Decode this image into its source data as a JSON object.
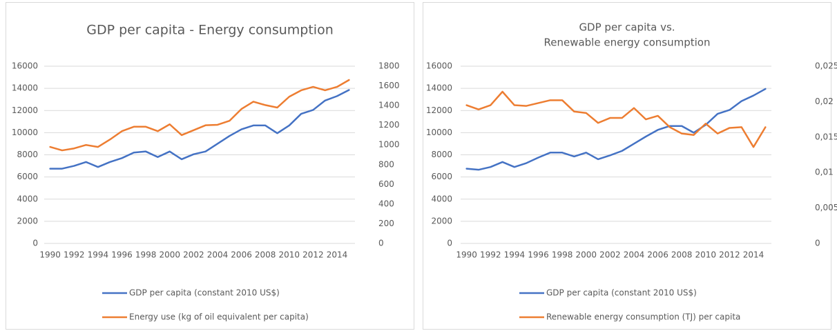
{
  "chart_data": [
    {
      "type": "line",
      "title": "GDP per capita - Energy consumption",
      "categories": [
        1990,
        null,
        1992,
        null,
        1994,
        null,
        1996,
        null,
        1998,
        null,
        2000,
        null,
        2002,
        null,
        2004,
        null,
        2006,
        null,
        2008,
        null,
        2010,
        null,
        2012,
        null,
        2014,
        null
      ],
      "series": [
        {
          "name": "GDP per capita (constant 2010 US$)",
          "color": "#4472c4",
          "values": [
            6750,
            6750,
            7000,
            7350,
            6900,
            7350,
            7700,
            8200,
            8300,
            7800,
            8300,
            7600,
            8050,
            8300,
            9000,
            9700,
            10300,
            10650,
            10650,
            9950,
            10650,
            11700,
            12050,
            12900,
            13300,
            13850
          ]
        },
        {
          "name": "Energy use (kg of oil equivalent per capita)",
          "color": "#ed7d31",
          "axis": "y2",
          "values": [
            980,
            945,
            965,
            1000,
            980,
            1055,
            1140,
            1185,
            1185,
            1140,
            1210,
            1100,
            1150,
            1200,
            1205,
            1245,
            1365,
            1440,
            1405,
            1380,
            1490,
            1555,
            1590,
            1555,
            1590,
            1660
          ]
        }
      ],
      "ylim": [
        0,
        16000
      ],
      "yticks": [
        0,
        2000,
        4000,
        6000,
        8000,
        10000,
        12000,
        14000,
        16000
      ],
      "y2lim": [
        0,
        1800
      ],
      "y2ticks": [
        0,
        200,
        400,
        600,
        800,
        1000,
        1200,
        1400,
        1600,
        1800
      ],
      "grid": true,
      "legend": "bottom"
    },
    {
      "type": "line",
      "title": [
        "GDP per capita vs.",
        "Renewable energy consumption"
      ],
      "categories": [
        1990,
        null,
        1992,
        null,
        1994,
        null,
        1996,
        null,
        1998,
        null,
        2000,
        null,
        2002,
        null,
        2004,
        null,
        2006,
        null,
        2008,
        null,
        2010,
        null,
        2012,
        null,
        2014,
        null
      ],
      "series": [
        {
          "name": "GDP per capita (constant 2010 US$)",
          "color": "#4472c4",
          "values": [
            6750,
            6650,
            6900,
            7350,
            6900,
            7250,
            7750,
            8200,
            8200,
            7850,
            8200,
            7600,
            7950,
            8350,
            9000,
            9650,
            10250,
            10600,
            10600,
            10000,
            10700,
            11700,
            12050,
            12850,
            13350,
            13950
          ]
        },
        {
          "name": "Renewable energy consumption (TJ) per capita",
          "color": "#ed7d31",
          "axis": "y2",
          "values": [
            0.0195,
            0.0189,
            0.0195,
            0.0214,
            0.0195,
            0.0194,
            0.0198,
            0.0202,
            0.0202,
            0.0186,
            0.0184,
            0.017,
            0.0177,
            0.0177,
            0.0191,
            0.0175,
            0.018,
            0.0164,
            0.0155,
            0.0153,
            0.0169,
            0.0155,
            0.0163,
            0.0164,
            0.0136,
            0.0164
          ]
        }
      ],
      "ylim": [
        0,
        16000
      ],
      "yticks": [
        0,
        2000,
        4000,
        6000,
        8000,
        10000,
        12000,
        14000,
        16000
      ],
      "y2lim": [
        0,
        0.025
      ],
      "y2ticks": [
        0,
        {
          "value": 0.005,
          "label": "0,005"
        },
        {
          "value": 0.01,
          "label": "0,01"
        },
        {
          "value": 0.015,
          "label": "0,015"
        },
        {
          "value": 0.02,
          "label": "0,02"
        },
        {
          "value": 0.025,
          "label": "0,025"
        }
      ],
      "grid": true,
      "legend": "bottom"
    }
  ]
}
